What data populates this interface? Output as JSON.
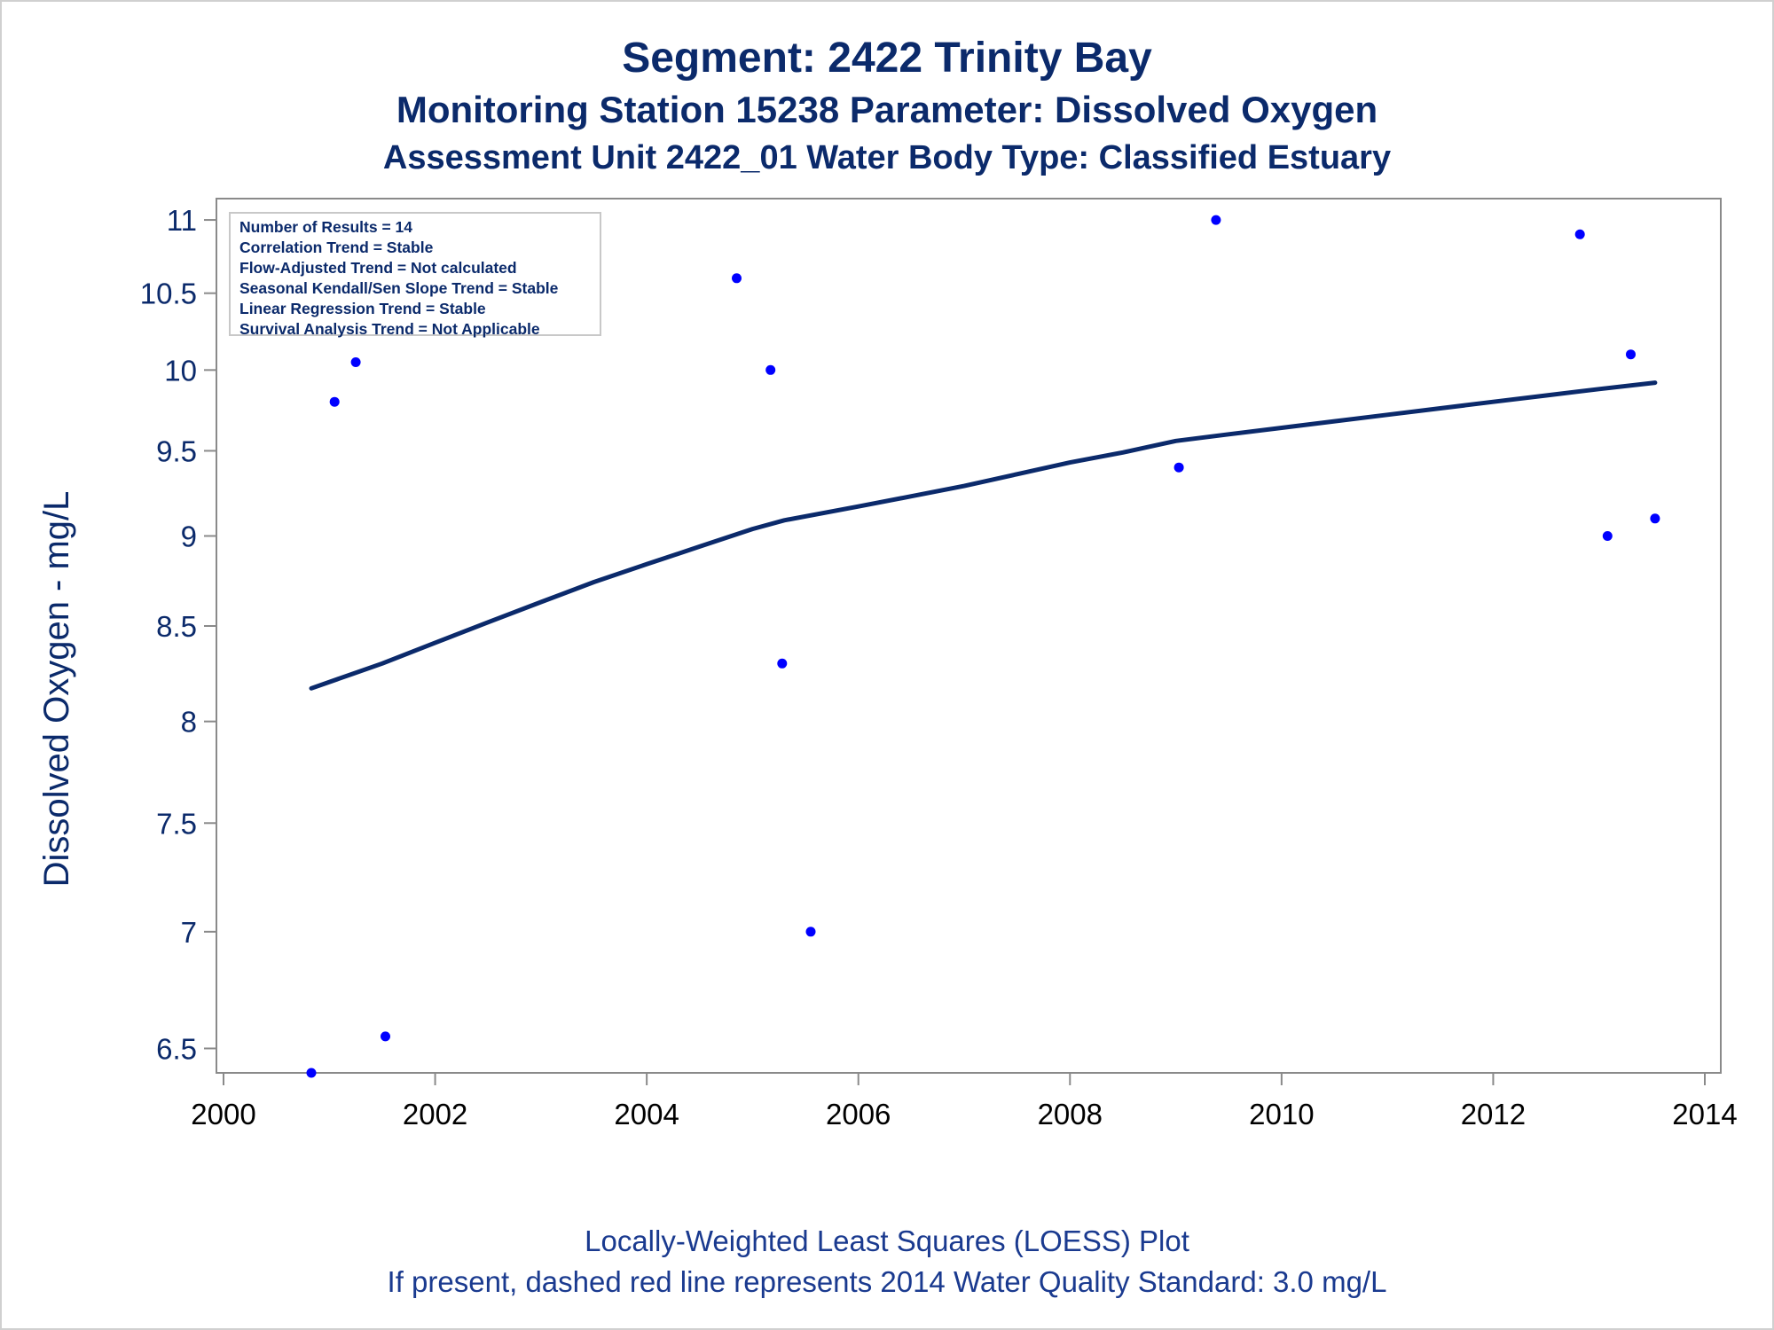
{
  "titles": {
    "line1": "Segment: 2422  Trinity Bay",
    "line2": "Monitoring Station 15238 Parameter: Dissolved Oxygen",
    "line3": "Assessment Unit 2422_01   Water Body Type: Classified Estuary"
  },
  "footnotes": {
    "line1": "Locally-Weighted Least Squares (LOESS) Plot",
    "line2": "If present, dashed red line represents 2014 Water Quality Standard: 3.0 mg/L"
  },
  "stats_box": {
    "n_results": "Number of Results = 14",
    "correlation": "Correlation Trend = Stable",
    "flow_adjusted": "Flow-Adjusted Trend = Not calculated",
    "seasonal_kendall": "Seasonal Kendall/Sen Slope Trend = Stable",
    "linear_regression": "Linear Regression Trend = Stable",
    "survival": "Survival Analysis Trend = Not Applicable"
  },
  "colors": {
    "text": "#0b2a6b",
    "points": "#0000ff",
    "loess_line": "#0b2a6b",
    "axis": "#8a8a8a"
  },
  "chart_data": {
    "type": "scatter",
    "title": "Segment: 2422  Trinity Bay",
    "xlabel": "",
    "ylabel": "Dissolved Oxygen - mg/L",
    "xlim": [
      2000,
      2014
    ],
    "ylim": [
      6.4,
      11.05
    ],
    "y_scale": "log",
    "x_ticks": [
      2000,
      2002,
      2004,
      2006,
      2008,
      2010,
      2012,
      2014
    ],
    "y_ticks": [
      6.5,
      7,
      7.5,
      8,
      8.5,
      9,
      9.5,
      10,
      10.5,
      11
    ],
    "grid": false,
    "series": [
      {
        "type": "scatter",
        "x": [
          2000.83,
          2001.05,
          2001.25,
          2001.53,
          2004.85,
          2005.17,
          2005.28,
          2005.55,
          2009.03,
          2009.38,
          2012.82,
          2013.08,
          2013.3,
          2013.53
        ],
        "y": [
          6.4,
          9.8,
          10.05,
          6.55,
          10.6,
          10.0,
          8.3,
          7.0,
          9.4,
          11.0,
          10.9,
          9.0,
          10.1,
          9.1
        ]
      },
      {
        "type": "line",
        "x": [
          2000.83,
          2001.5,
          2002,
          2002.5,
          2003,
          2003.5,
          2004,
          2004.5,
          2005,
          2005.3,
          2006,
          2006.5,
          2007,
          2007.5,
          2008,
          2008.5,
          2009,
          2009.5,
          2010,
          2010.5,
          2011,
          2011.5,
          2012,
          2012.5,
          2013,
          2013.53
        ],
        "y": [
          8.17,
          8.3,
          8.41,
          8.52,
          8.63,
          8.74,
          8.84,
          8.94,
          9.04,
          9.09,
          9.17,
          9.23,
          9.29,
          9.36,
          9.43,
          9.49,
          9.56,
          9.6,
          9.64,
          9.68,
          9.72,
          9.76,
          9.8,
          9.84,
          9.88,
          9.92
        ]
      }
    ]
  }
}
